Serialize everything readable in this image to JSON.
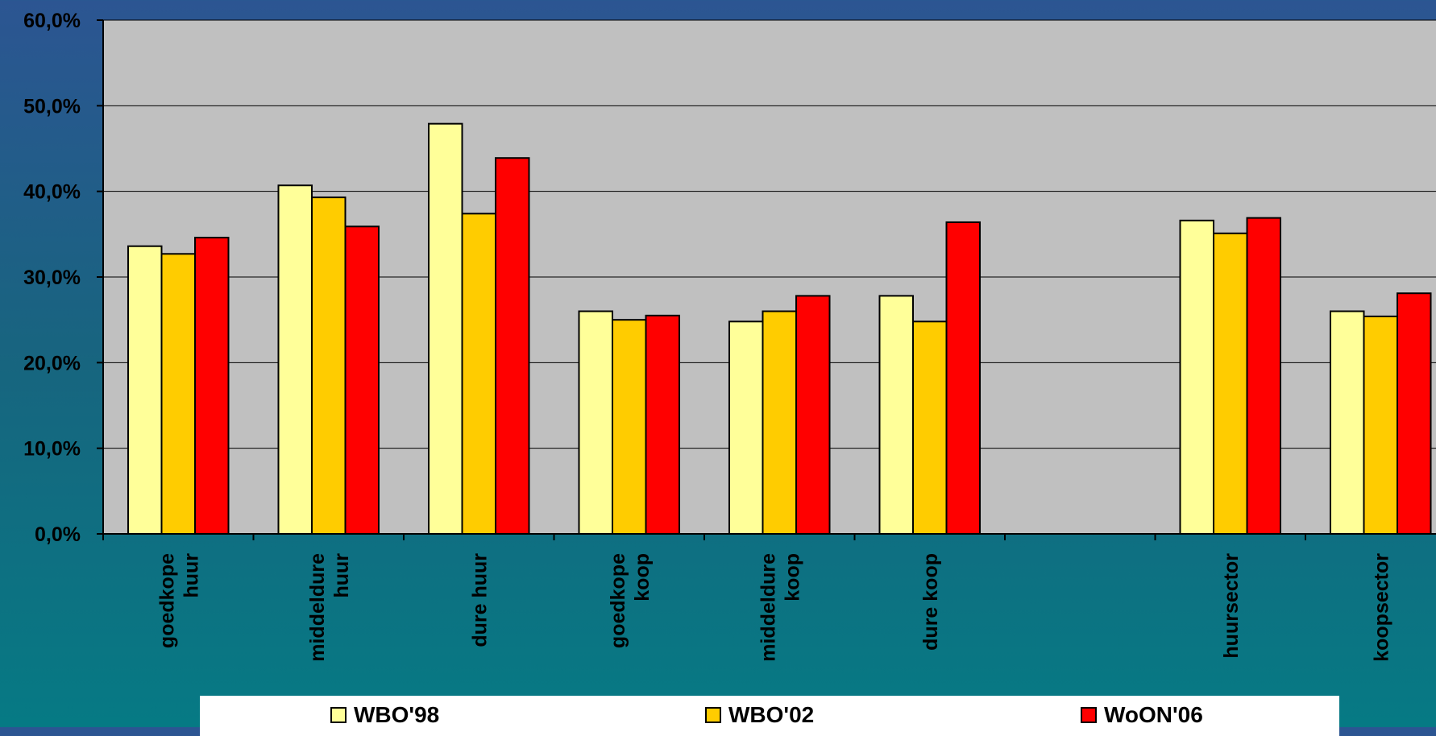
{
  "chart_data": {
    "type": "bar",
    "categories": [
      [
        "goedkope",
        "huur"
      ],
      [
        "middeldure",
        "huur"
      ],
      [
        "dure huur"
      ],
      [
        "goedkope",
        "koop"
      ],
      [
        "middeldure",
        "koop"
      ],
      [
        "dure koop"
      ],
      [
        ""
      ],
      [
        "huursector"
      ],
      [
        "koopsector"
      ]
    ],
    "series": [
      {
        "name": "WBO'98",
        "color": "#ffff99",
        "values": [
          33.6,
          40.7,
          47.9,
          26.0,
          24.8,
          27.8,
          null,
          36.6,
          26.0
        ]
      },
      {
        "name": "WBO'02",
        "color": "#ffcc00",
        "values": [
          32.7,
          39.3,
          37.4,
          25.0,
          26.0,
          24.8,
          null,
          35.1,
          25.4
        ]
      },
      {
        "name": "WoON'06",
        "color": "#ff0000",
        "values": [
          34.6,
          35.9,
          43.9,
          25.5,
          27.8,
          36.4,
          null,
          36.9,
          28.1
        ]
      }
    ],
    "yticks": [
      "0,0%",
      "10,0%",
      "20,0%",
      "30,0%",
      "40,0%",
      "50,0%",
      "60,0%"
    ],
    "ylim": [
      0,
      60
    ],
    "grid": true,
    "plot_background": "#c0c0c0",
    "legend_position": "bottom"
  }
}
